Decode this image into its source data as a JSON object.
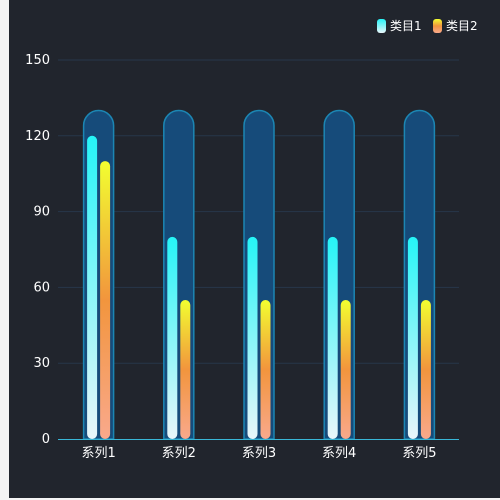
{
  "chart_data": {
    "type": "bar",
    "categories": [
      "系列1",
      "系列2",
      "系列3",
      "系列4",
      "系列5"
    ],
    "series": [
      {
        "name": "类目1",
        "values": [
          120,
          80,
          80,
          80,
          80
        ],
        "gradient": [
          "#e9f6fa",
          "#25f4f7"
        ]
      },
      {
        "name": "类目2",
        "values": [
          110,
          55,
          55,
          55,
          55
        ],
        "gradient": [
          "#f9a98c",
          "#f2953d",
          "#f2ff30"
        ]
      }
    ],
    "background_capsule": {
      "value": 130,
      "fill": "#164b7a",
      "stroke": "#1c86b3"
    },
    "y_ticks": [
      0,
      30,
      60,
      90,
      120,
      150
    ],
    "ylim": [
      0,
      150
    ],
    "grid": true,
    "legend_position": "top-right",
    "colors": {
      "background": "#21252d",
      "grid": "#27364a",
      "axis": "#39b6d6",
      "text": "#ffffff"
    }
  }
}
